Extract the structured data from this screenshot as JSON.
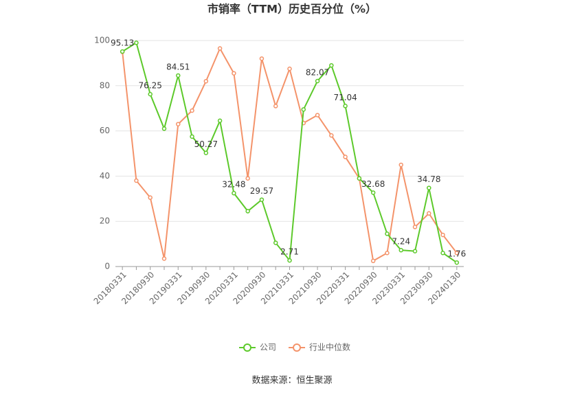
{
  "chart_data": {
    "type": "line",
    "title": "市销率（TTM）历史百分位（%）",
    "categories": [
      "20180331",
      null,
      "20180930",
      null,
      "20190331",
      null,
      "20190930",
      null,
      "20200331",
      null,
      "20200930",
      null,
      "20210331",
      null,
      "20210930",
      null,
      "20220331",
      null,
      "20220930",
      null,
      "20230331",
      null,
      "20230930",
      null,
      "20240130"
    ],
    "series": [
      {
        "name": "公司",
        "color": "#5cc92a",
        "values": [
          95.13,
          99,
          76.25,
          61,
          84.51,
          57.5,
          50.27,
          64.5,
          32.48,
          24.5,
          29.57,
          10.5,
          2.71,
          69.5,
          82.07,
          89,
          71.04,
          39,
          32.68,
          14.5,
          7.24,
          6.8,
          34.78,
          6,
          1.76
        ]
      },
      {
        "name": "行业中位数",
        "color": "#f4936a",
        "values": [
          95,
          38,
          30.5,
          3.5,
          63,
          69,
          82,
          96.5,
          85.5,
          39,
          92,
          71,
          87.5,
          63.5,
          67,
          58,
          48.5,
          39,
          2.5,
          6,
          45,
          17.5,
          23.5,
          14,
          6
        ]
      }
    ],
    "ylim": [
      0,
      100
    ],
    "yticks": [
      0,
      20,
      40,
      60,
      80,
      100
    ],
    "grid": true,
    "source": "数据来源：恒生聚源"
  }
}
